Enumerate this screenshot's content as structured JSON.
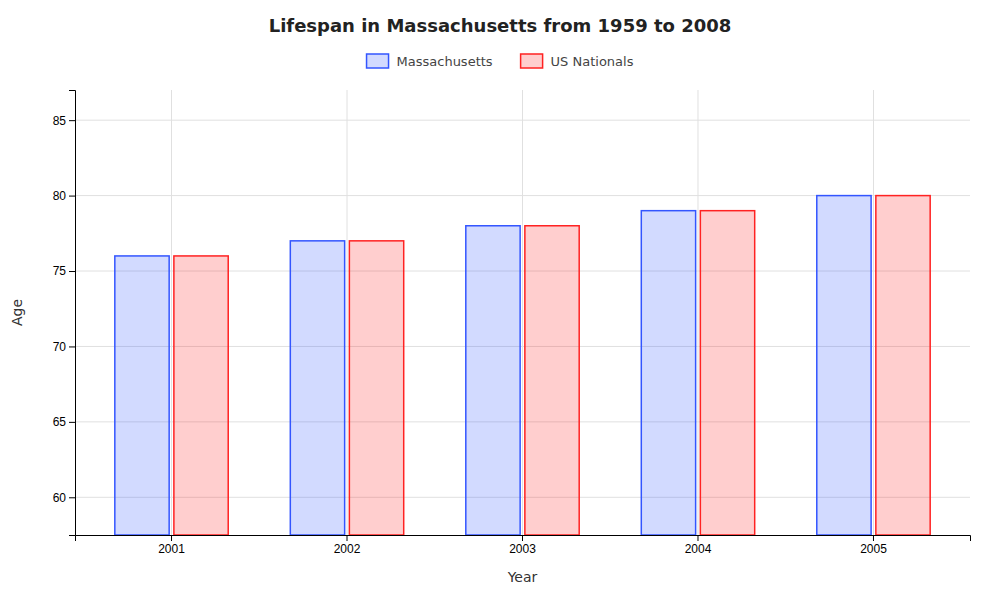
{
  "chart_data": {
    "type": "bar",
    "title": "Lifespan in Massachusetts from 1959 to 2008",
    "xlabel": "Year",
    "ylabel": "Age",
    "categories": [
      "2001",
      "2002",
      "2003",
      "2004",
      "2005"
    ],
    "series": [
      {
        "name": "Massachusetts",
        "color": "#3355ff",
        "values": [
          76.0,
          77.0,
          78.0,
          79.0,
          80.0
        ]
      },
      {
        "name": "US Nationals",
        "color": "#ff2222",
        "values": [
          76.0,
          77.0,
          78.0,
          79.0,
          80.0
        ]
      }
    ],
    "ylim": [
      57.5,
      87
    ],
    "yticks": [
      60,
      65,
      70,
      75,
      80,
      85
    ],
    "grid": true,
    "legend": "top"
  }
}
